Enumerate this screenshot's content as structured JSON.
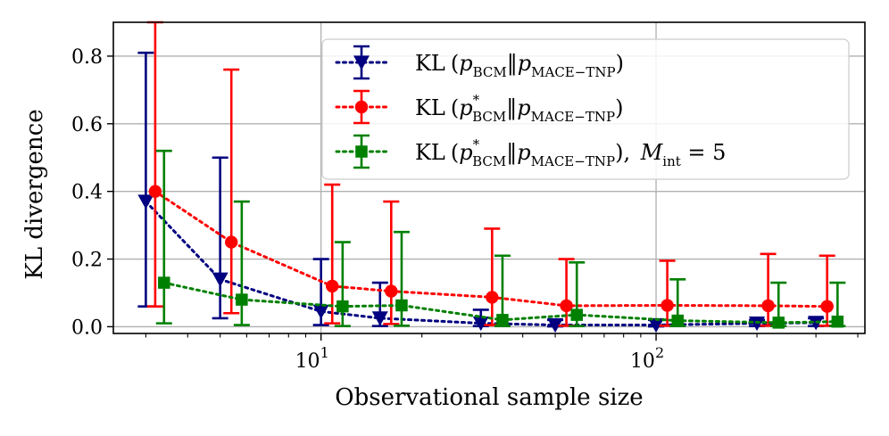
{
  "chart_data": {
    "type": "line",
    "xscale": "log",
    "xlabel": "Observational sample size",
    "ylabel": "KL divergence",
    "xlim": [
      2.4,
      420
    ],
    "ylim": [
      -0.02,
      0.9
    ],
    "grid": true,
    "legend_position": "top-right",
    "xticks": [
      {
        "value": 10,
        "base": "10",
        "exp": "1"
      },
      {
        "value": 100,
        "base": "10",
        "exp": "2"
      }
    ],
    "yticks": [
      {
        "value": 0.0,
        "label": "0.0"
      },
      {
        "value": 0.2,
        "label": "0.2"
      },
      {
        "value": 0.4,
        "label": "0.4"
      },
      {
        "value": 0.6,
        "label": "0.6"
      },
      {
        "value": 0.8,
        "label": "0.8"
      }
    ],
    "series": [
      {
        "name": "KL(p_BCM || p_MACE-TNP)",
        "color": "#000080",
        "marker": "triangle-down",
        "x": [
          3,
          5,
          10,
          15,
          30,
          50,
          100,
          200,
          300
        ],
        "y": [
          0.37,
          0.14,
          0.045,
          0.025,
          0.01,
          0.005,
          0.005,
          0.01,
          0.012
        ],
        "err_low": [
          0.06,
          0.025,
          0.005,
          0.002,
          0.002,
          0.001,
          0.001,
          0.002,
          0.002
        ],
        "err_high": [
          0.81,
          0.5,
          0.2,
          0.13,
          0.05,
          0.02,
          0.02,
          0.02,
          0.025
        ]
      },
      {
        "name": "KL(p*_BCM || p_MACE-TNP)",
        "color": "#ff0000",
        "marker": "circle",
        "x": [
          3.2,
          5.4,
          10.8,
          16.2,
          32.4,
          54,
          108,
          216,
          324
        ],
        "y": [
          0.4,
          0.25,
          0.12,
          0.105,
          0.087,
          0.062,
          0.063,
          0.062,
          0.06
        ],
        "err_low": [
          0.06,
          0.04,
          0.01,
          0.008,
          0.005,
          0.003,
          0.003,
          0.003,
          0.003
        ],
        "err_high": [
          0.9,
          0.76,
          0.42,
          0.37,
          0.29,
          0.2,
          0.195,
          0.215,
          0.21
        ]
      },
      {
        "name": "KL(p*_BCM || p_MACE-TNP), M_int = 5",
        "color": "#008000",
        "marker": "square",
        "x": [
          3.4,
          5.8,
          11.6,
          17.4,
          34.8,
          58,
          116,
          232,
          348
        ],
        "y": [
          0.13,
          0.08,
          0.06,
          0.063,
          0.02,
          0.035,
          0.018,
          0.012,
          0.015
        ],
        "err_low": [
          0.01,
          0.005,
          0.002,
          0.003,
          0.002,
          0.002,
          0.002,
          0.002,
          0.002
        ],
        "err_high": [
          0.52,
          0.37,
          0.25,
          0.28,
          0.21,
          0.19,
          0.14,
          0.13,
          0.13
        ]
      }
    ],
    "legend": [
      {
        "kl": "KL",
        "open": "(",
        "p1": "p",
        "sup1": "",
        "sub1": "BCM",
        "bars": "‖",
        "p2": "p",
        "sub2": "MACE−TNP",
        "close": ")",
        "extra": ""
      },
      {
        "kl": "KL",
        "open": "(",
        "p1": "p",
        "sup1": "*",
        "sub1": "BCM",
        "bars": "‖",
        "p2": "p",
        "sub2": "MACE−TNP",
        "close": ")",
        "extra": ""
      },
      {
        "kl": "KL",
        "open": "(",
        "p1": "p",
        "sup1": "*",
        "sub1": "BCM",
        "bars": "‖",
        "p2": "p",
        "sub2": "MACE−TNP",
        "close": ")",
        "extra": ",  ",
        "m": "M",
        "msub": "int",
        "eq": " = 5"
      }
    ]
  }
}
